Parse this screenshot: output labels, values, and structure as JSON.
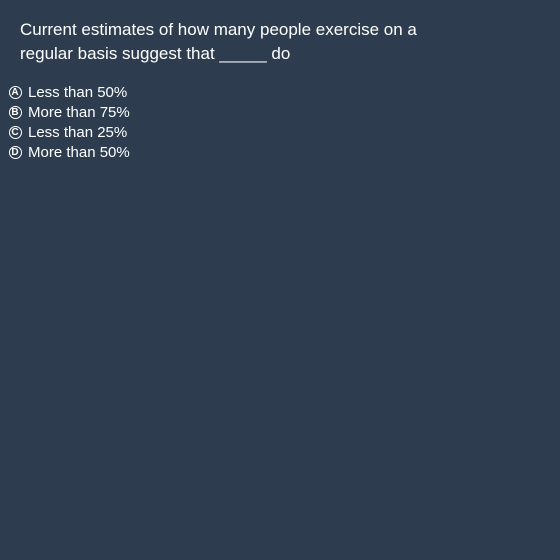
{
  "question": {
    "text": "Current estimates of how many people exercise on a\nregular basis suggest that _____ do"
  },
  "options": [
    {
      "letter": "A",
      "label": "Less than 50%"
    },
    {
      "letter": "B",
      "label": "More than 75%"
    },
    {
      "letter": "C",
      "label": "Less than 25%"
    },
    {
      "letter": "D",
      "label": "More than 50%"
    }
  ]
}
